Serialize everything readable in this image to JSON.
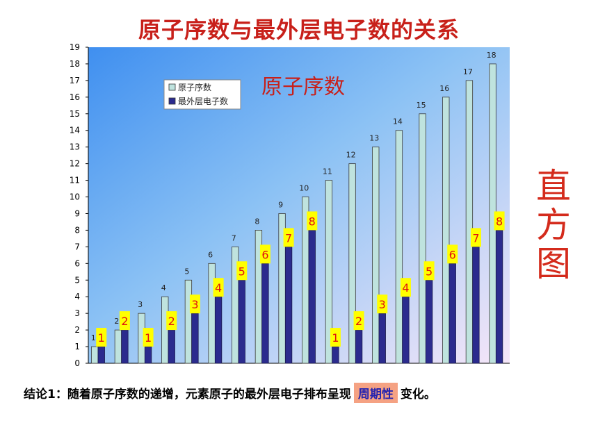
{
  "title": "原子序数与最外层电子数的关系",
  "side_label": [
    "直",
    "方",
    "图"
  ],
  "conclusion": {
    "prefix": "结论1：随着原子序数的递增，元素原子的最外层电子排布呈现",
    "highlight": "周期性",
    "suffix": "变化。"
  },
  "colors": {
    "series1": "#bfe3de",
    "series2": "#2b2b8e",
    "label_box": "#ffff00",
    "label_text": "#e01010",
    "title": "#c8201a"
  },
  "chart_data": {
    "type": "bar",
    "inner_title": "原子序数",
    "categories": [
      "1",
      "2",
      "3",
      "4",
      "5",
      "6",
      "7",
      "8",
      "9",
      "10",
      "11",
      "12",
      "13",
      "14",
      "15",
      "16",
      "17",
      "18"
    ],
    "series": [
      {
        "name": "原子序数",
        "values": [
          1,
          2,
          3,
          4,
          5,
          6,
          7,
          8,
          9,
          10,
          11,
          12,
          13,
          14,
          15,
          16,
          17,
          18
        ],
        "data_labels": [
          "1",
          "2",
          "3",
          "4",
          "5",
          "6",
          "7",
          "8",
          "9",
          "10",
          "11",
          "12",
          "13",
          "14",
          "15",
          "16",
          "17",
          "18"
        ]
      },
      {
        "name": "最外层电子数",
        "values": [
          1,
          2,
          1,
          2,
          3,
          4,
          5,
          6,
          7,
          8,
          1,
          2,
          3,
          4,
          5,
          6,
          7,
          8
        ],
        "data_labels": [
          "1",
          "2",
          "1",
          "2",
          "3",
          "4",
          "5",
          "6",
          "7",
          "8",
          "1",
          "2",
          "3",
          "4",
          "5",
          "6",
          "7",
          "8"
        ]
      }
    ],
    "y_ticks": [
      "0",
      "1",
      "2",
      "3",
      "4",
      "5",
      "6",
      "7",
      "8",
      "9",
      "10",
      "11",
      "12",
      "13",
      "14",
      "15",
      "16",
      "17",
      "18",
      "19"
    ],
    "ylim": [
      0,
      19
    ],
    "legend_position": "top-left"
  }
}
